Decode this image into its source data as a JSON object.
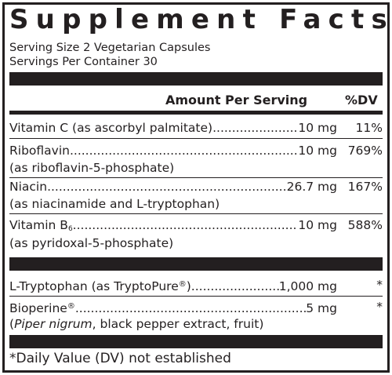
{
  "title": "Supplement Facts",
  "serving_size": "Serving Size 2 Vegetarian Capsules",
  "servings_per_container": "Servings Per Container 30",
  "header": {
    "amount": "Amount Per Serving",
    "dv": "%DV"
  },
  "nutrients": [
    {
      "name": "Vitamin C (as ascorbyl palmitate)",
      "amount": "10 mg",
      "dv": "11%"
    },
    {
      "name": "Riboflavin",
      "sub": "(as riboflavin-5-phosphate)",
      "amount": "10 mg",
      "dv": "769%"
    },
    {
      "name": "Niacin",
      "sub": "(as niacinamide and L-tryptophan)",
      "amount": "26.7 mg",
      "dv": "167%"
    },
    {
      "name": "Vitamin B",
      "subscript": "6",
      "sub": "(as pyridoxal-5-phosphate)",
      "amount": "10 mg",
      "dv": "588%"
    }
  ],
  "other": [
    {
      "name": "L-Tryptophan (as TryptoPure",
      "mark": "®",
      "name_end": ")",
      "amount": "1,000 mg",
      "dv": "*"
    },
    {
      "name": "Bioperine",
      "mark": "®",
      "amount": "5 mg",
      "dv": "*",
      "sub_italic": "Piper nigrum",
      "sub_rest": ", black pepper extract, fruit)",
      "sub_open": "("
    }
  ],
  "footnote": "*Daily Value (DV) not established"
}
